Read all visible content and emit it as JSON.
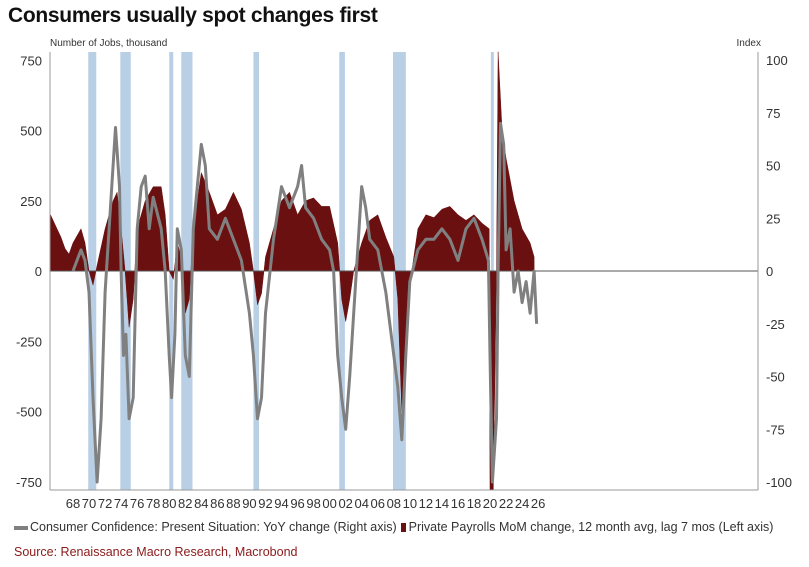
{
  "chart_data": {
    "type": "line",
    "title": "Consumers usually spot changes first",
    "ylabel_left": "Number of Jobs, thousand",
    "ylabel_right": "Index",
    "ylim_left": [
      -780,
      780
    ],
    "ylim_right": [
      -104,
      104
    ],
    "yticks_left": [
      750,
      500,
      250,
      0,
      -250,
      -500,
      -750
    ],
    "yticks_right": [
      100,
      75,
      50,
      25,
      0,
      -25,
      -50,
      -75,
      -100
    ],
    "xtick_labels": [
      "68",
      "70",
      "72",
      "74",
      "76",
      "78",
      "80",
      "82",
      "84",
      "86",
      "88",
      "90",
      "92",
      "94",
      "96",
      "98",
      "00",
      "02",
      "04",
      "06",
      "08",
      "10",
      "12",
      "14",
      "16",
      "18",
      "20",
      "22",
      "24",
      "26"
    ],
    "recessions": [
      [
        1969.9,
        1970.9
      ],
      [
        1973.9,
        1975.2
      ],
      [
        1980.0,
        1980.5
      ],
      [
        1981.5,
        1982.9
      ],
      [
        1990.5,
        1991.2
      ],
      [
        2001.2,
        2001.9
      ],
      [
        2007.9,
        2009.5
      ],
      [
        2020.1,
        2020.35
      ]
    ],
    "series": [
      {
        "name": "Consumer Confidence: Present Situation: YoY change (Right axis)",
        "axis": "right",
        "color": "#808080",
        "x": [
          1968,
          1969,
          1969.5,
          1970,
          1970.5,
          1971,
          1971.5,
          1972,
          1972.5,
          1973,
          1973.3,
          1973.8,
          1974,
          1974.3,
          1974.6,
          1975,
          1975.5,
          1976,
          1976.5,
          1977,
          1977.5,
          1978,
          1979,
          1979.5,
          1980,
          1980.3,
          1980.7,
          1981,
          1981.5,
          1982,
          1982.5,
          1983,
          1984,
          1984.5,
          1985,
          1986,
          1987,
          1988,
          1989,
          1990,
          1990.5,
          1991,
          1991.5,
          1992,
          1993,
          1994,
          1995,
          1996,
          1996.5,
          1997,
          1998,
          1999,
          2000,
          2000.5,
          2001,
          2001.5,
          2002,
          2002.5,
          2003,
          2003.5,
          2004,
          2004.5,
          2005,
          2006,
          2007,
          2008,
          2008.5,
          2009,
          2009.5,
          2010,
          2011,
          2012,
          2013,
          2014,
          2015,
          2016,
          2017,
          2018,
          2019,
          2019.8,
          2020,
          2020.3,
          2020.8,
          2021,
          2021.3,
          2021.7,
          2022,
          2022.5,
          2023,
          2023.5,
          2024,
          2024.5,
          2025,
          2025.5,
          2025.8
        ],
        "y": [
          0,
          10,
          5,
          -10,
          -60,
          -100,
          -70,
          -10,
          20,
          50,
          68,
          40,
          0,
          -40,
          -30,
          -70,
          -60,
          20,
          40,
          45,
          20,
          35,
          20,
          0,
          -40,
          -60,
          -30,
          20,
          10,
          -40,
          -50,
          20,
          60,
          50,
          20,
          15,
          25,
          15,
          5,
          -20,
          -40,
          -70,
          -60,
          -20,
          15,
          40,
          30,
          40,
          50,
          30,
          25,
          15,
          10,
          0,
          -40,
          -60,
          -75,
          -50,
          -20,
          10,
          40,
          30,
          15,
          10,
          -10,
          -40,
          -55,
          -80,
          -40,
          -5,
          10,
          15,
          15,
          20,
          15,
          5,
          20,
          25,
          15,
          5,
          -40,
          -100,
          -70,
          0,
          70,
          60,
          10,
          20,
          -10,
          0,
          -15,
          -5,
          -20,
          0,
          -25
        ]
      },
      {
        "name": "Private Payrolls MoM change, 12 month avg, lag 7 mos (Left axis)",
        "axis": "left",
        "color": "#6b1010",
        "x": [
          1965.2,
          1966,
          1966.5,
          1967,
          1967.5,
          1968,
          1969,
          1969.5,
          1970,
          1970.5,
          1971,
          1972,
          1973,
          1973.5,
          1974,
          1974.5,
          1975,
          1975.5,
          1976,
          1977,
          1978,
          1979,
          1979.5,
          1980,
          1980.5,
          1981,
          1981.5,
          1982,
          1982.5,
          1983,
          1984,
          1985,
          1986,
          1987,
          1988,
          1989,
          1990,
          1990.5,
          1991,
          1991.5,
          1992,
          1993,
          1994,
          1995,
          1996,
          1997,
          1998,
          1999,
          2000,
          2001,
          2001.5,
          2002,
          2002.5,
          2003,
          2004,
          2005,
          2006,
          2007,
          2008,
          2008.5,
          2009,
          2009.5,
          2010,
          2011,
          2012,
          2013,
          2014,
          2015,
          2016,
          2017,
          2018,
          2019,
          2019.9,
          2020,
          2020.4,
          2020.8,
          2021,
          2021.5,
          2022,
          2023,
          2024,
          2025,
          2025.5
        ],
        "y": [
          200,
          150,
          120,
          80,
          60,
          100,
          150,
          100,
          0,
          -50,
          20,
          150,
          250,
          280,
          150,
          0,
          -200,
          -100,
          150,
          250,
          300,
          300,
          200,
          0,
          -30,
          100,
          50,
          -150,
          -100,
          150,
          350,
          280,
          200,
          220,
          280,
          220,
          100,
          0,
          -120,
          -80,
          50,
          150,
          250,
          280,
          200,
          250,
          260,
          230,
          230,
          100,
          -100,
          -180,
          -100,
          0,
          100,
          180,
          200,
          120,
          50,
          -100,
          -500,
          -300,
          -50,
          150,
          200,
          190,
          220,
          230,
          200,
          180,
          200,
          170,
          150,
          -780,
          -780,
          0,
          780,
          500,
          400,
          250,
          150,
          100,
          50
        ]
      }
    ],
    "legend": "bottom"
  },
  "source": "Source: Renaissance Macro Research, Macrobond"
}
